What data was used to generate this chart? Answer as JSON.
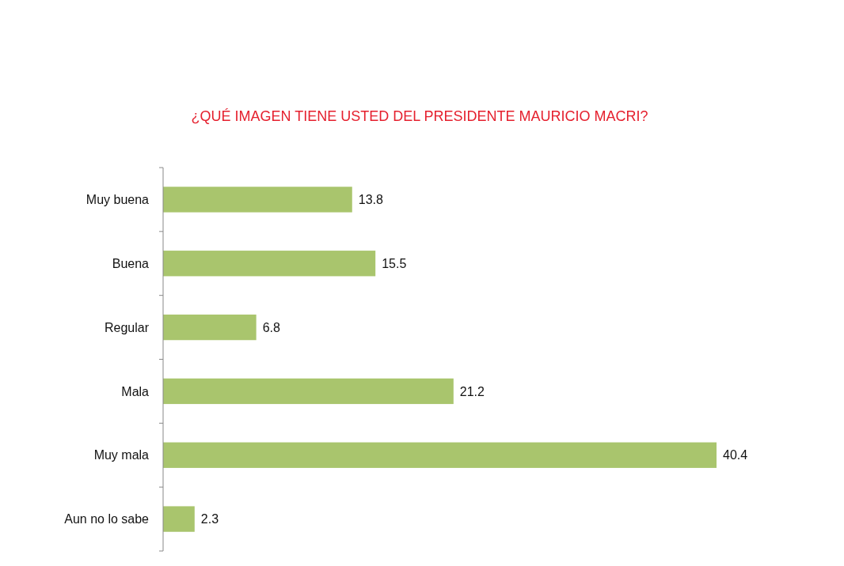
{
  "chart_data": {
    "type": "bar",
    "orientation": "horizontal",
    "title": "¿QUÉ IMAGEN TIENE USTED DEL PRESIDENTE MAURICIO MACRI?",
    "categories": [
      "Muy buena",
      "Buena",
      "Regular",
      "Mala",
      "Muy mala",
      "Aun no lo sabe"
    ],
    "values": [
      13.8,
      15.5,
      6.8,
      21.2,
      40.4,
      2.3
    ],
    "color": "#a9c56d",
    "data_labels": true,
    "tick_labels": "y"
  }
}
